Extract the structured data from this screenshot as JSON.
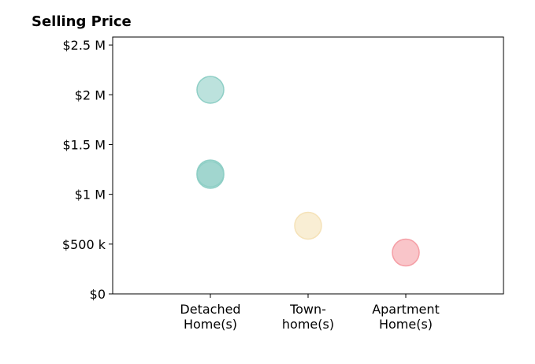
{
  "chart_data": {
    "type": "scatter",
    "title": "Selling Price",
    "xlabel": "",
    "ylabel": "",
    "categories": [
      [
        "Detached",
        "Home(s)"
      ],
      [
        "Town-",
        "home(s)"
      ],
      [
        "Apartment",
        "Home(s)"
      ]
    ],
    "xlim": [
      0,
      4
    ],
    "ylim": [
      0,
      2580000
    ],
    "yticks": [
      {
        "value": 0,
        "label": "$0"
      },
      {
        "value": 500000,
        "label": "$500 k"
      },
      {
        "value": 1000000,
        "label": "$1 M"
      },
      {
        "value": 1500000,
        "label": "$1.5 M"
      },
      {
        "value": 2000000,
        "label": "$2 M"
      },
      {
        "value": 2500000,
        "label": "$2.5 M"
      }
    ],
    "points": [
      {
        "category": "Detached Home(s)",
        "x": 1,
        "y": 2050000,
        "color": "#8fcfc6"
      },
      {
        "category": "Detached Home(s)",
        "x": 1,
        "y": 1210000,
        "color": "#8fcfc6"
      },
      {
        "category": "Detached Home(s)",
        "x": 1,
        "y": 1195000,
        "color": "#8fcfc6"
      },
      {
        "category": "Town-home(s)",
        "x": 2,
        "y": 685000,
        "color": "#f5e2b8"
      },
      {
        "category": "Apartment Home(s)",
        "x": 3,
        "y": 415000,
        "color": "#f59ea5"
      }
    ],
    "grid": false,
    "legend": "none"
  }
}
